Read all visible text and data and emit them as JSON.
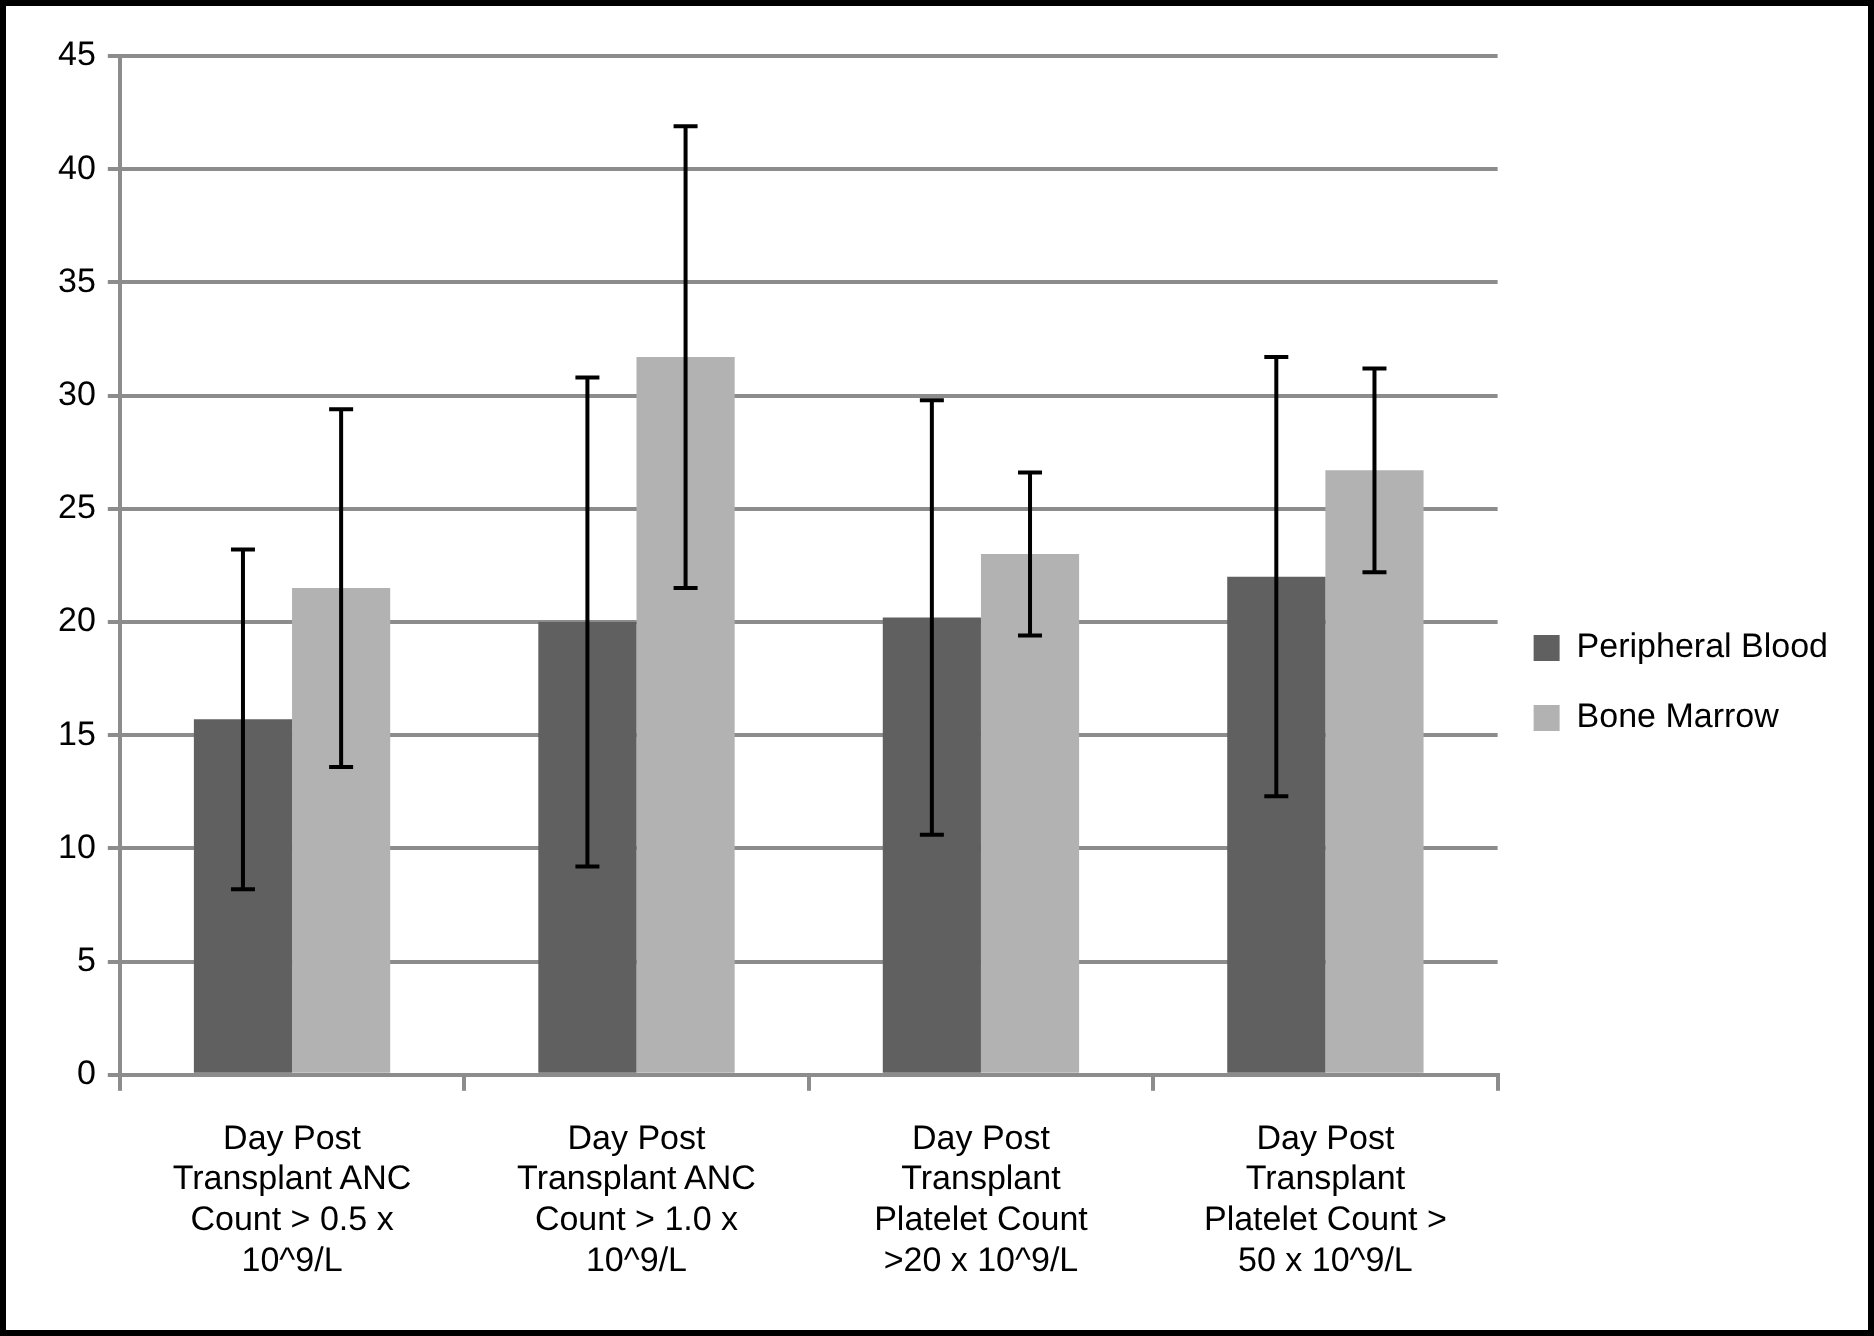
{
  "chart_data": {
    "type": "bar",
    "categories": [
      "Day Post Transplant ANC Count > 0.5 x 10^9/L",
      "Day Post Transplant ANC Count > 1.0 x 10^9/L",
      "Day Post Transplant Platelet Count >20 x 10^9/L",
      "Day Post Transplant Platelet Count > 50 x 10^9/L"
    ],
    "series": [
      {
        "name": "Peripheral Blood",
        "color": "#606060",
        "values": [
          15.7,
          20.0,
          20.2,
          22.0
        ],
        "errors": [
          7.5,
          10.8,
          9.6,
          9.7
        ]
      },
      {
        "name": "Bone Marrow",
        "color": "#b2b2b2",
        "values": [
          21.5,
          31.7,
          23.0,
          26.7
        ],
        "errors": [
          7.9,
          10.2,
          3.6,
          4.5
        ]
      }
    ],
    "ylim": [
      0,
      45
    ],
    "yticks": [
      0,
      5,
      10,
      15,
      20,
      25,
      30,
      35,
      40,
      45
    ],
    "grid": "y",
    "legend": "right"
  }
}
